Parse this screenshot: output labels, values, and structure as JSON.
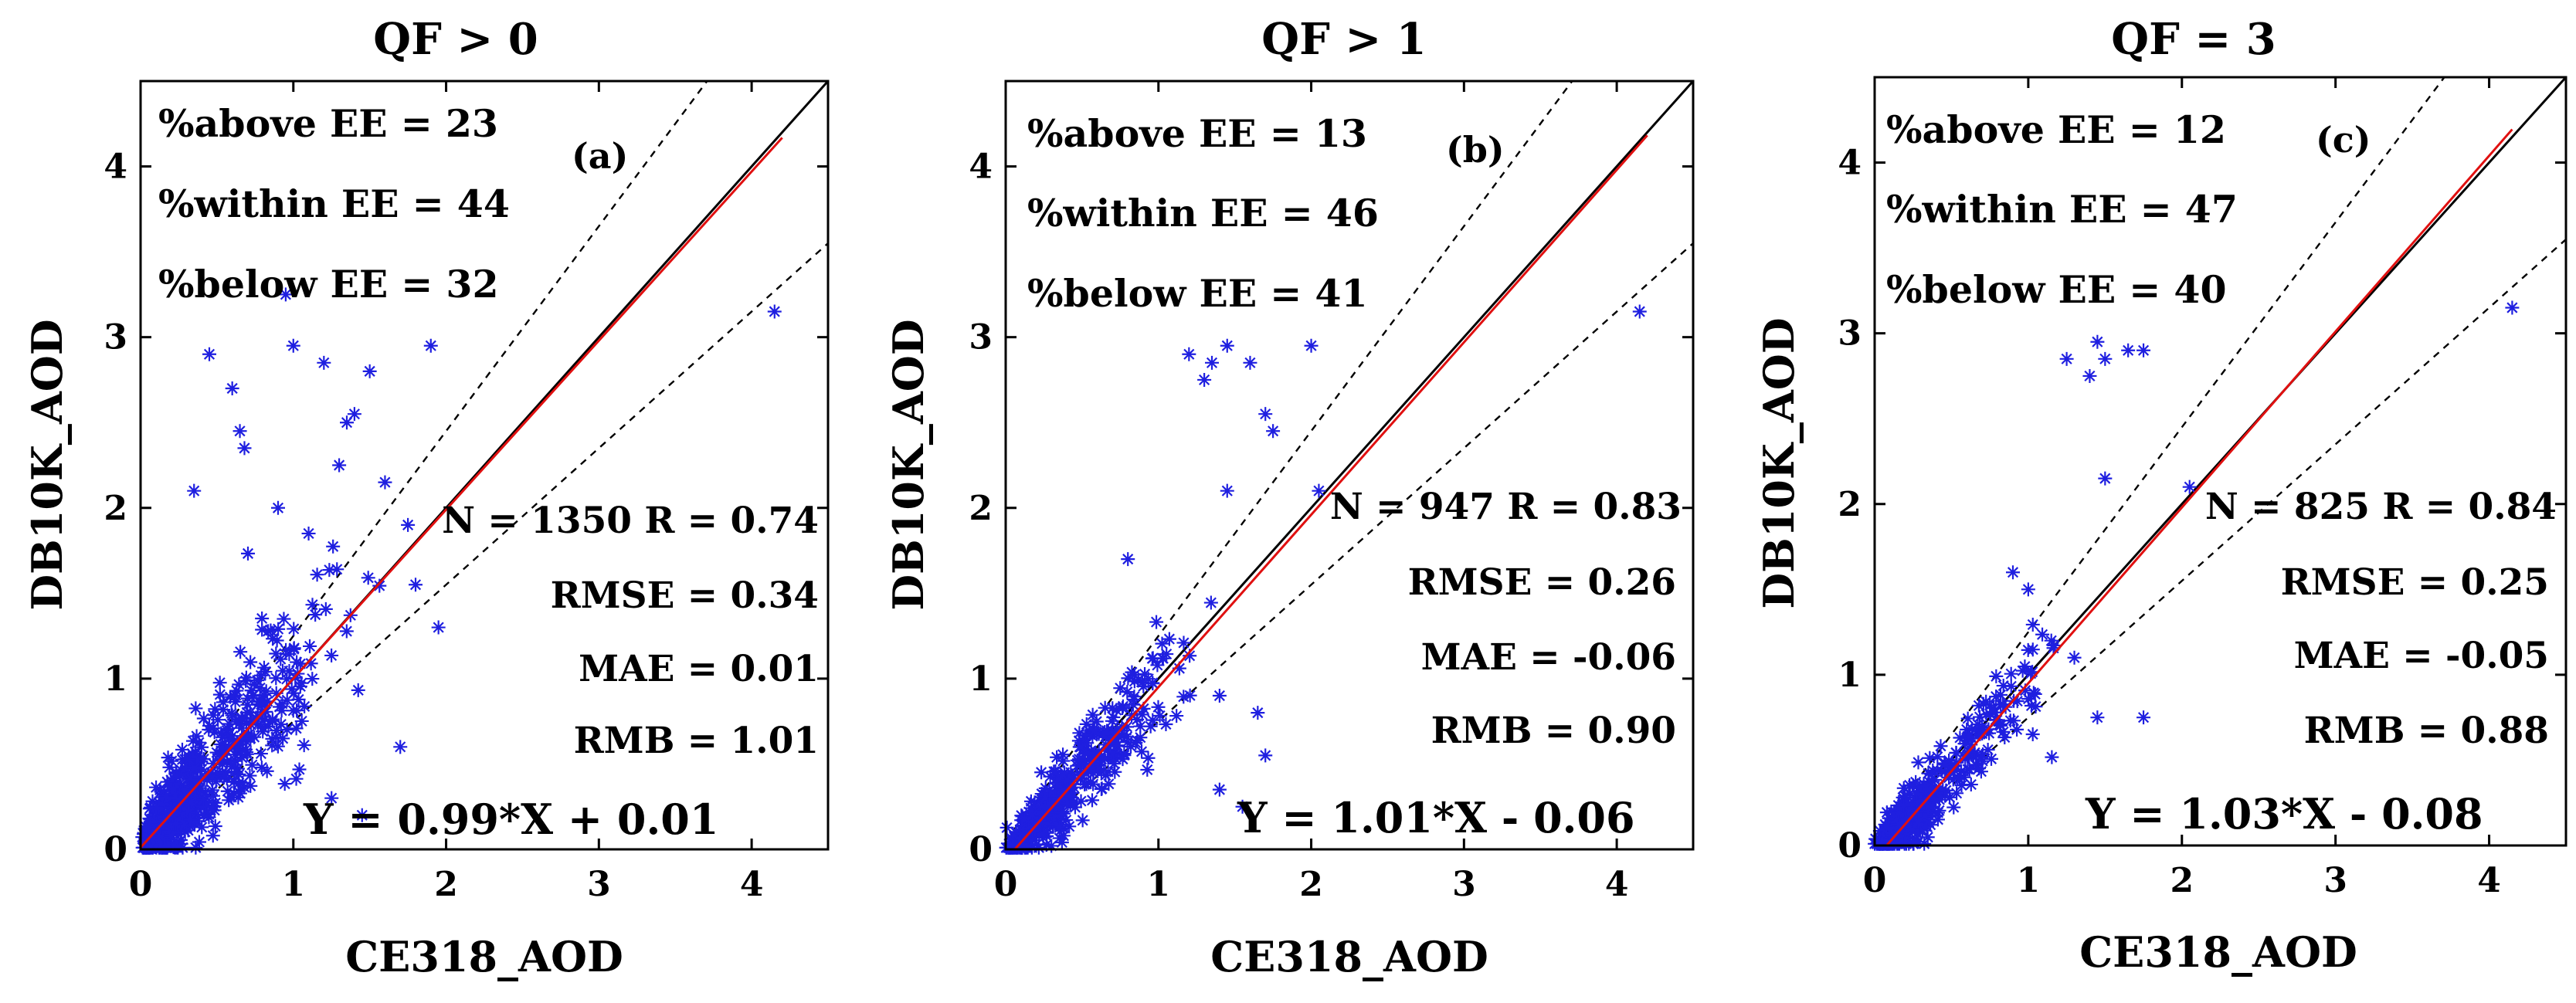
{
  "chart_data": [
    {
      "type": "scatter",
      "title": "QF > 0",
      "panel_label": "(a)",
      "xlabel": "CE318_AOD",
      "ylabel": "DB10K_AOD",
      "xlim": [
        0,
        4.5
      ],
      "ylim": [
        0,
        4.5
      ],
      "x_ticks": [
        0,
        1,
        2,
        3,
        4
      ],
      "y_ticks": [
        0,
        1,
        2,
        3,
        4
      ],
      "ee_stats": [
        "%above EE = 23",
        "%within EE = 44",
        "%below EE = 32"
      ],
      "metrics": [
        "N = 1350 R = 0.74",
        "RMSE = 0.34",
        "MAE = 0.01",
        "RMB = 1.01"
      ],
      "regression_text": "Y = 0.99*X + 0.01",
      "regression": {
        "slope": 0.99,
        "intercept": 0.01,
        "x_max": 4.2
      },
      "ee": {
        "offset": 0.05,
        "fraction": 0.2
      },
      "n_points": 1350,
      "cluster": {
        "center_x": 0.5,
        "spread_x": 0.35,
        "noise": 0.28
      },
      "outliers": [
        [
          4.15,
          3.15
        ],
        [
          0.45,
          2.9
        ],
        [
          0.6,
          2.7
        ],
        [
          0.95,
          3.25
        ],
        [
          1.0,
          2.95
        ],
        [
          1.2,
          2.85
        ],
        [
          1.9,
          2.95
        ],
        [
          1.5,
          2.8
        ],
        [
          1.4,
          2.55
        ],
        [
          1.3,
          2.25
        ],
        [
          0.65,
          2.45
        ],
        [
          0.68,
          2.35
        ],
        [
          1.8,
          1.55
        ],
        [
          1.95,
          1.3
        ],
        [
          1.7,
          0.6
        ],
        [
          1.25,
          0.3
        ],
        [
          1.45,
          0.2
        ],
        [
          1.6,
          2.15
        ],
        [
          1.1,
          1.85
        ],
        [
          0.35,
          2.1
        ],
        [
          0.9,
          2.0
        ],
        [
          1.35,
          2.5
        ],
        [
          1.75,
          1.9
        ]
      ]
    },
    {
      "type": "scatter",
      "title": "QF > 1",
      "panel_label": "(b)",
      "xlabel": "CE318_AOD",
      "ylabel": "DB10K_AOD",
      "xlim": [
        0,
        4.5
      ],
      "ylim": [
        0,
        4.5
      ],
      "x_ticks": [
        0,
        1,
        2,
        3,
        4
      ],
      "y_ticks": [
        0,
        1,
        2,
        3,
        4
      ],
      "ee_stats": [
        "%above EE = 13",
        "%within EE = 46",
        "%below EE = 41"
      ],
      "metrics": [
        "N = 947 R = 0.83",
        "RMSE = 0.26",
        "MAE = -0.06",
        "RMB = 0.90"
      ],
      "regression_text": "Y = 1.01*X - 0.06",
      "regression": {
        "slope": 1.01,
        "intercept": -0.06,
        "x_max": 4.2
      },
      "ee": {
        "offset": 0.05,
        "fraction": 0.2
      },
      "n_points": 947,
      "cluster": {
        "center_x": 0.5,
        "spread_x": 0.3,
        "noise": 0.2
      },
      "outliers": [
        [
          4.15,
          3.15
        ],
        [
          1.2,
          2.9
        ],
        [
          1.45,
          2.95
        ],
        [
          1.3,
          2.75
        ],
        [
          1.35,
          2.85
        ],
        [
          1.6,
          2.85
        ],
        [
          2.0,
          2.95
        ],
        [
          1.7,
          2.55
        ],
        [
          1.75,
          2.45
        ],
        [
          1.45,
          2.1
        ],
        [
          2.05,
          2.1
        ],
        [
          1.7,
          0.55
        ],
        [
          1.4,
          0.35
        ],
        [
          1.55,
          0.25
        ],
        [
          1.4,
          0.9
        ],
        [
          1.65,
          0.8
        ],
        [
          0.8,
          1.7
        ]
      ]
    },
    {
      "type": "scatter",
      "title": "QF = 3",
      "panel_label": "(c)",
      "xlabel": "CE318_AOD",
      "ylabel": "DB10K_AOD",
      "xlim": [
        0,
        4.5
      ],
      "ylim": [
        0,
        4.5
      ],
      "x_ticks": [
        0,
        1,
        2,
        3,
        4
      ],
      "y_ticks": [
        0,
        1,
        2,
        3,
        4
      ],
      "ee_stats": [
        "%above EE = 12",
        "%within EE = 47",
        "%below EE = 40"
      ],
      "metrics": [
        "N = 825 R = 0.84",
        "RMSE = 0.25",
        "MAE = -0.05",
        "RMB = 0.88"
      ],
      "regression_text": "Y = 1.03*X - 0.08",
      "regression": {
        "slope": 1.03,
        "intercept": -0.08,
        "x_max": 4.15
      },
      "ee": {
        "offset": 0.05,
        "fraction": 0.2
      },
      "n_points": 825,
      "cluster": {
        "center_x": 0.5,
        "spread_x": 0.3,
        "noise": 0.2
      },
      "outliers": [
        [
          4.15,
          3.15
        ],
        [
          1.45,
          2.95
        ],
        [
          1.5,
          2.85
        ],
        [
          1.4,
          2.75
        ],
        [
          1.65,
          2.9
        ],
        [
          1.75,
          2.9
        ],
        [
          1.25,
          2.85
        ],
        [
          1.5,
          2.15
        ],
        [
          2.05,
          2.1
        ],
        [
          1.75,
          0.75
        ],
        [
          1.45,
          0.75
        ],
        [
          1.15,
          1.2
        ],
        [
          1.0,
          1.5
        ],
        [
          1.3,
          1.1
        ],
        [
          0.9,
          1.6
        ]
      ]
    }
  ]
}
